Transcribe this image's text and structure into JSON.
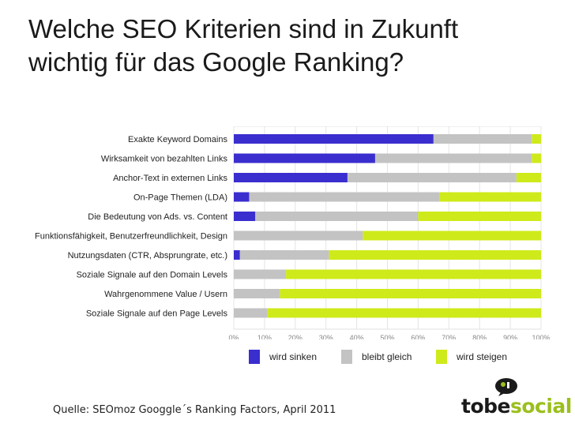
{
  "slide": {
    "title_line1": "Welche SEO Kriterien sind in Zukunft",
    "title_line2": "wichtig für das Google Ranking?",
    "source": "Quelle: SEOmoz Googgle´s Ranking Factors, April 2011"
  },
  "logo": {
    "part1": "tobe",
    "part2": "social",
    "icon": "speech-bubble-icon"
  },
  "colors": {
    "sinken": "#3a2ecf",
    "gleich": "#c3c3c3",
    "steigen": "#cfea1a"
  },
  "chart_data": {
    "type": "bar",
    "orientation": "horizontal",
    "stacked": true,
    "categories": [
      "Exakte Keyword Domains",
      "Wirksamkeit von bezahlten Links",
      "Anchor-Text in externen Links",
      "On-Page Themen (LDA)",
      "Die Bedeutung von Ads. vs. Content",
      "Funktionsfähigkeit, Benutzerfreundlichkeit, Design",
      "Nutzungsdaten (CTR, Absprungrate, etc.)",
      "Soziale Signale auf den Domain Levels",
      "Wahrgenommene Value / Usern",
      "Soziale Signale auf den Page Levels"
    ],
    "series": [
      {
        "name": "wird sinken",
        "values": [
          65,
          46,
          37,
          5,
          7,
          0,
          2,
          0,
          0,
          0
        ]
      },
      {
        "name": "bleibt gleich",
        "values": [
          32,
          51,
          55,
          62,
          53,
          42,
          29,
          17,
          15,
          11
        ]
      },
      {
        "name": "wird steigen",
        "values": [
          3,
          3,
          8,
          33,
          40,
          58,
          69,
          83,
          85,
          89
        ]
      }
    ],
    "xticks": [
      "0%",
      "10%",
      "20%",
      "30%",
      "40%",
      "50%",
      "60%",
      "70%",
      "80%",
      "90%",
      "100%"
    ],
    "xlim": [
      0,
      100
    ],
    "grid": true,
    "legend_position": "bottom"
  }
}
